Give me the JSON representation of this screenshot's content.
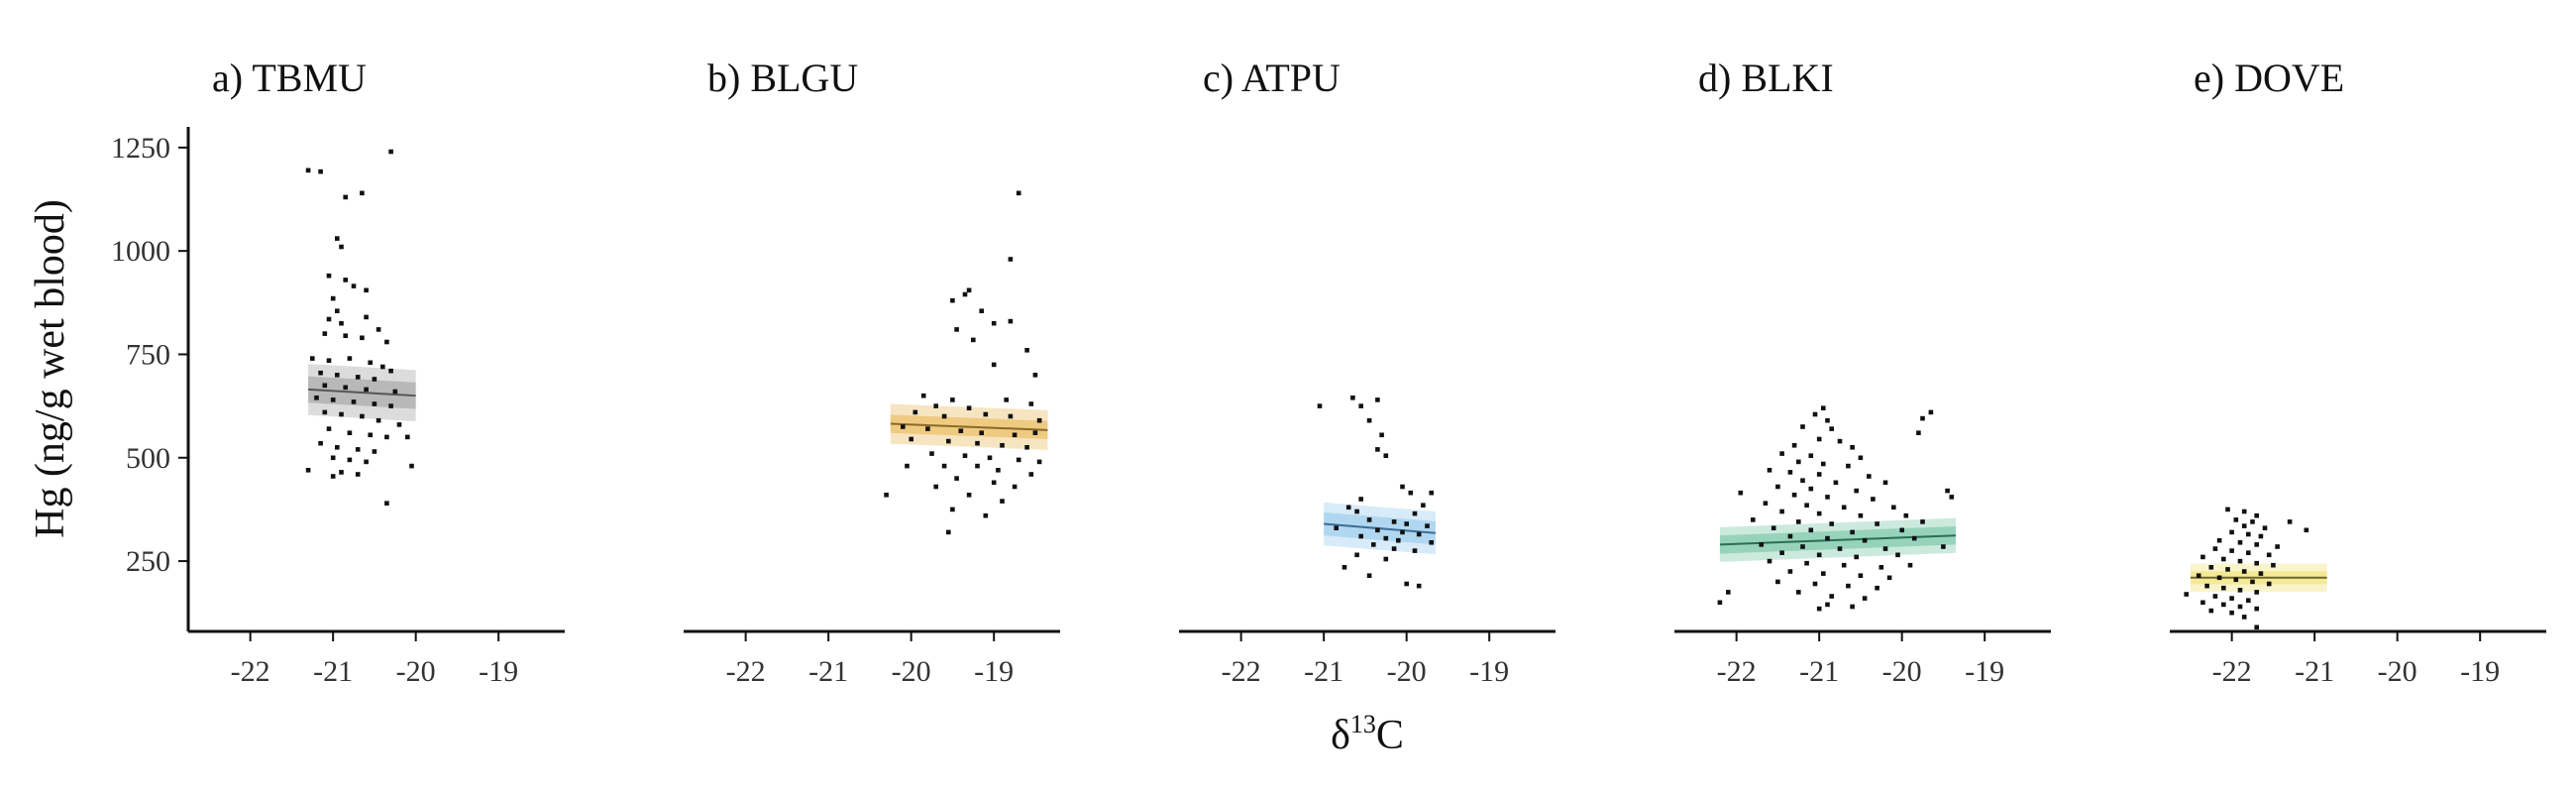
{
  "chart_data": {
    "type": "scatter",
    "ylabel": "Hg (ng/g wet blood)",
    "xlabel": "δ",
    "xlabel_sup": "13",
    "xlabel_suffix": "C",
    "xlim": [
      -22.75,
      -18.2
    ],
    "ylim": [
      80,
      1300
    ],
    "xticks": [
      -22,
      -21,
      -20,
      -19
    ],
    "xtick_labels": [
      "-22",
      "-21",
      "-20",
      "-19"
    ],
    "yticks": [
      250,
      500,
      750,
      1000,
      1250
    ],
    "ytick_labels": [
      "250",
      "500",
      "750",
      "1000",
      "1250"
    ],
    "grid": false,
    "legend": "none",
    "point_color": "#111111",
    "panels": [
      {
        "title": "a) TBMU",
        "fit": {
          "x": [
            -21.3,
            -20.0
          ],
          "y": [
            665,
            650
          ],
          "band_inner": 32,
          "band_outer": 62
        },
        "band_color": "#9a9a9a",
        "line_color": "#555555",
        "points": [
          [
            -21.3,
            1195
          ],
          [
            -21.15,
            1192
          ],
          [
            -20.3,
            1240
          ],
          [
            -20.85,
            1130
          ],
          [
            -20.65,
            1140
          ],
          [
            -20.95,
            1030
          ],
          [
            -20.9,
            1010
          ],
          [
            -21.05,
            940
          ],
          [
            -20.85,
            930
          ],
          [
            -20.75,
            915
          ],
          [
            -20.6,
            905
          ],
          [
            -21.0,
            885
          ],
          [
            -20.95,
            855
          ],
          [
            -21.05,
            835
          ],
          [
            -20.9,
            825
          ],
          [
            -20.6,
            840
          ],
          [
            -20.45,
            810
          ],
          [
            -21.1,
            800
          ],
          [
            -20.85,
            795
          ],
          [
            -20.65,
            790
          ],
          [
            -20.35,
            780
          ],
          [
            -21.25,
            740
          ],
          [
            -21.05,
            735
          ],
          [
            -20.8,
            740
          ],
          [
            -20.55,
            730
          ],
          [
            -20.4,
            720
          ],
          [
            -20.3,
            710
          ],
          [
            -21.15,
            705
          ],
          [
            -20.95,
            700
          ],
          [
            -20.7,
            695
          ],
          [
            -20.5,
            690
          ],
          [
            -21.1,
            675
          ],
          [
            -20.85,
            670
          ],
          [
            -20.6,
            665
          ],
          [
            -20.25,
            660
          ],
          [
            -21.2,
            645
          ],
          [
            -21.0,
            640
          ],
          [
            -20.75,
            635
          ],
          [
            -20.5,
            630
          ],
          [
            -20.3,
            625
          ],
          [
            -21.1,
            610
          ],
          [
            -20.9,
            605
          ],
          [
            -20.65,
            600
          ],
          [
            -20.45,
            590
          ],
          [
            -20.2,
            580
          ],
          [
            -21.05,
            570
          ],
          [
            -20.8,
            560
          ],
          [
            -20.55,
            555
          ],
          [
            -20.35,
            550
          ],
          [
            -20.1,
            550
          ],
          [
            -21.15,
            535
          ],
          [
            -20.95,
            525
          ],
          [
            -20.7,
            520
          ],
          [
            -20.5,
            515
          ],
          [
            -21.0,
            500
          ],
          [
            -20.8,
            495
          ],
          [
            -20.6,
            490
          ],
          [
            -20.05,
            480
          ],
          [
            -21.3,
            470
          ],
          [
            -20.9,
            465
          ],
          [
            -21.0,
            455
          ],
          [
            -20.7,
            460
          ],
          [
            -20.35,
            390
          ]
        ]
      },
      {
        "title": "b) BLGU",
        "fit": {
          "x": [
            -20.25,
            -18.35
          ],
          "y": [
            582,
            567
          ],
          "band_inner": 22,
          "band_outer": 48
        },
        "band_color": "#e9b44c",
        "line_color": "#8a6a2a",
        "points": [
          [
            -18.7,
            1140
          ],
          [
            -18.8,
            980
          ],
          [
            -19.3,
            905
          ],
          [
            -19.35,
            895
          ],
          [
            -19.5,
            880
          ],
          [
            -19.15,
            855
          ],
          [
            -18.8,
            830
          ],
          [
            -19.0,
            825
          ],
          [
            -19.45,
            810
          ],
          [
            -18.6,
            760
          ],
          [
            -19.25,
            785
          ],
          [
            -19.0,
            725
          ],
          [
            -18.5,
            700
          ],
          [
            -19.85,
            650
          ],
          [
            -19.5,
            640
          ],
          [
            -19.7,
            625
          ],
          [
            -18.85,
            640
          ],
          [
            -19.3,
            620
          ],
          [
            -18.55,
            630
          ],
          [
            -19.95,
            610
          ],
          [
            -19.6,
            600
          ],
          [
            -19.1,
            605
          ],
          [
            -18.8,
            600
          ],
          [
            -18.45,
            590
          ],
          [
            -20.1,
            575
          ],
          [
            -19.8,
            570
          ],
          [
            -19.4,
            565
          ],
          [
            -19.15,
            560
          ],
          [
            -18.75,
            555
          ],
          [
            -18.5,
            560
          ],
          [
            -20.0,
            545
          ],
          [
            -19.55,
            540
          ],
          [
            -19.2,
            535
          ],
          [
            -18.9,
            530
          ],
          [
            -18.6,
            525
          ],
          [
            -19.75,
            510
          ],
          [
            -19.35,
            505
          ],
          [
            -19.05,
            500
          ],
          [
            -18.7,
            495
          ],
          [
            -18.45,
            490
          ],
          [
            -20.05,
            480
          ],
          [
            -19.6,
            480
          ],
          [
            -19.2,
            480
          ],
          [
            -18.95,
            470
          ],
          [
            -18.55,
            460
          ],
          [
            -19.45,
            450
          ],
          [
            -19.0,
            440
          ],
          [
            -18.75,
            430
          ],
          [
            -19.7,
            430
          ],
          [
            -19.3,
            410
          ],
          [
            -20.3,
            410
          ],
          [
            -18.9,
            395
          ],
          [
            -19.5,
            375
          ],
          [
            -19.1,
            360
          ],
          [
            -19.55,
            320
          ]
        ]
      },
      {
        "title": "c) ATPU",
        "fit": {
          "x": [
            -21.0,
            -19.65
          ],
          "y": [
            340,
            318
          ],
          "band_inner": 28,
          "band_outer": 52
        },
        "band_color": "#8fc7ea",
        "line_color": "#3d6e96",
        "points": [
          [
            -21.05,
            625
          ],
          [
            -20.65,
            645
          ],
          [
            -20.35,
            640
          ],
          [
            -20.55,
            625
          ],
          [
            -20.45,
            590
          ],
          [
            -20.3,
            555
          ],
          [
            -20.35,
            520
          ],
          [
            -20.25,
            505
          ],
          [
            -20.05,
            430
          ],
          [
            -19.95,
            415
          ],
          [
            -19.7,
            415
          ],
          [
            -20.55,
            400
          ],
          [
            -19.8,
            385
          ],
          [
            -20.7,
            380
          ],
          [
            -20.6,
            370
          ],
          [
            -19.9,
            365
          ],
          [
            -20.45,
            350
          ],
          [
            -20.15,
            345
          ],
          [
            -20.0,
            340
          ],
          [
            -19.75,
            335
          ],
          [
            -20.85,
            330
          ],
          [
            -20.35,
            325
          ],
          [
            -20.05,
            320
          ],
          [
            -19.85,
            315
          ],
          [
            -20.55,
            310
          ],
          [
            -20.25,
            305
          ],
          [
            -20.1,
            300
          ],
          [
            -19.7,
            295
          ],
          [
            -20.4,
            290
          ],
          [
            -20.15,
            280
          ],
          [
            -19.9,
            275
          ],
          [
            -20.6,
            265
          ],
          [
            -20.25,
            255
          ],
          [
            -20.75,
            235
          ],
          [
            -20.45,
            215
          ],
          [
            -20.0,
            195
          ],
          [
            -19.85,
            190
          ]
        ]
      },
      {
        "title": "d) BLKI",
        "fit": {
          "x": [
            -22.2,
            -19.35
          ],
          "y": [
            290,
            312
          ],
          "band_inner": 22,
          "band_outer": 42
        },
        "band_color": "#6cc0a0",
        "line_color": "#2a6e55",
        "points": [
          [
            -20.95,
            620
          ],
          [
            -21.05,
            605
          ],
          [
            -20.9,
            590
          ],
          [
            -19.65,
            610
          ],
          [
            -19.75,
            595
          ],
          [
            -21.2,
            575
          ],
          [
            -20.85,
            570
          ],
          [
            -19.8,
            560
          ],
          [
            -21.0,
            545
          ],
          [
            -20.75,
            540
          ],
          [
            -21.3,
            530
          ],
          [
            -20.6,
            525
          ],
          [
            -21.45,
            510
          ],
          [
            -21.1,
            505
          ],
          [
            -20.5,
            500
          ],
          [
            -21.25,
            490
          ],
          [
            -20.95,
            485
          ],
          [
            -20.65,
            480
          ],
          [
            -21.6,
            470
          ],
          [
            -21.35,
            465
          ],
          [
            -21.0,
            460
          ],
          [
            -20.4,
            455
          ],
          [
            -21.2,
            445
          ],
          [
            -20.8,
            440
          ],
          [
            -20.2,
            440
          ],
          [
            -21.5,
            430
          ],
          [
            -21.1,
            425
          ],
          [
            -20.55,
            420
          ],
          [
            -19.45,
            420
          ],
          [
            -21.95,
            415
          ],
          [
            -21.3,
            410
          ],
          [
            -20.9,
            405
          ],
          [
            -20.35,
            400
          ],
          [
            -19.4,
            405
          ],
          [
            -21.65,
            390
          ],
          [
            -21.15,
            385
          ],
          [
            -20.7,
            380
          ],
          [
            -20.1,
            380
          ],
          [
            -21.45,
            370
          ],
          [
            -21.0,
            365
          ],
          [
            -20.5,
            360
          ],
          [
            -19.95,
            360
          ],
          [
            -21.8,
            350
          ],
          [
            -21.25,
            345
          ],
          [
            -20.85,
            340
          ],
          [
            -20.3,
            340
          ],
          [
            -19.75,
            345
          ],
          [
            -21.55,
            330
          ],
          [
            -21.1,
            325
          ],
          [
            -20.6,
            320
          ],
          [
            -20.0,
            325
          ],
          [
            -21.35,
            310
          ],
          [
            -20.9,
            305
          ],
          [
            -20.45,
            300
          ],
          [
            -19.85,
            305
          ],
          [
            -21.7,
            290
          ],
          [
            -21.2,
            285
          ],
          [
            -20.75,
            280
          ],
          [
            -20.2,
            280
          ],
          [
            -19.5,
            285
          ],
          [
            -21.45,
            270
          ],
          [
            -21.0,
            265
          ],
          [
            -20.55,
            260
          ],
          [
            -20.05,
            265
          ],
          [
            -21.6,
            250
          ],
          [
            -21.15,
            245
          ],
          [
            -20.7,
            240
          ],
          [
            -20.25,
            235
          ],
          [
            -19.9,
            240
          ],
          [
            -21.35,
            225
          ],
          [
            -20.95,
            220
          ],
          [
            -20.5,
            215
          ],
          [
            -20.15,
            210
          ],
          [
            -21.5,
            200
          ],
          [
            -21.05,
            195
          ],
          [
            -20.65,
            190
          ],
          [
            -20.3,
            185
          ],
          [
            -21.25,
            175
          ],
          [
            -20.85,
            165
          ],
          [
            -20.45,
            160
          ],
          [
            -22.1,
            175
          ],
          [
            -22.2,
            150
          ],
          [
            -20.9,
            145
          ],
          [
            -20.6,
            140
          ],
          [
            -21.0,
            135
          ]
        ]
      },
      {
        "title": "e) DOVE",
        "fit": {
          "x": [
            -22.5,
            -20.85
          ],
          "y": [
            210,
            210
          ],
          "band_inner": 16,
          "band_outer": 34
        },
        "band_color": "#f2e06a",
        "line_color": "#6e6530",
        "points": [
          [
            -22.05,
            375
          ],
          [
            -21.85,
            370
          ],
          [
            -21.7,
            360
          ],
          [
            -21.95,
            350
          ],
          [
            -21.75,
            345
          ],
          [
            -21.3,
            345
          ],
          [
            -21.85,
            335
          ],
          [
            -21.6,
            330
          ],
          [
            -21.1,
            325
          ],
          [
            -22.0,
            320
          ],
          [
            -21.8,
            315
          ],
          [
            -21.65,
            310
          ],
          [
            -22.15,
            300
          ],
          [
            -21.9,
            295
          ],
          [
            -21.7,
            290
          ],
          [
            -21.45,
            285
          ],
          [
            -22.2,
            280
          ],
          [
            -22.0,
            275
          ],
          [
            -21.8,
            270
          ],
          [
            -21.55,
            265
          ],
          [
            -22.35,
            260
          ],
          [
            -22.1,
            255
          ],
          [
            -21.9,
            250
          ],
          [
            -21.7,
            245
          ],
          [
            -21.5,
            240
          ],
          [
            -22.25,
            235
          ],
          [
            -22.05,
            230
          ],
          [
            -21.85,
            225
          ],
          [
            -21.65,
            220
          ],
          [
            -22.4,
            215
          ],
          [
            -22.15,
            210
          ],
          [
            -21.95,
            205
          ],
          [
            -21.75,
            200
          ],
          [
            -21.55,
            195
          ],
          [
            -22.3,
            190
          ],
          [
            -22.1,
            185
          ],
          [
            -21.9,
            180
          ],
          [
            -21.7,
            175
          ],
          [
            -22.55,
            170
          ],
          [
            -22.2,
            165
          ],
          [
            -22.0,
            160
          ],
          [
            -21.8,
            155
          ],
          [
            -22.35,
            150
          ],
          [
            -22.1,
            145
          ],
          [
            -21.9,
            140
          ],
          [
            -21.7,
            135
          ],
          [
            -22.25,
            130
          ],
          [
            -22.0,
            125
          ],
          [
            -21.85,
            115
          ],
          [
            -21.7,
            90
          ]
        ]
      }
    ]
  }
}
